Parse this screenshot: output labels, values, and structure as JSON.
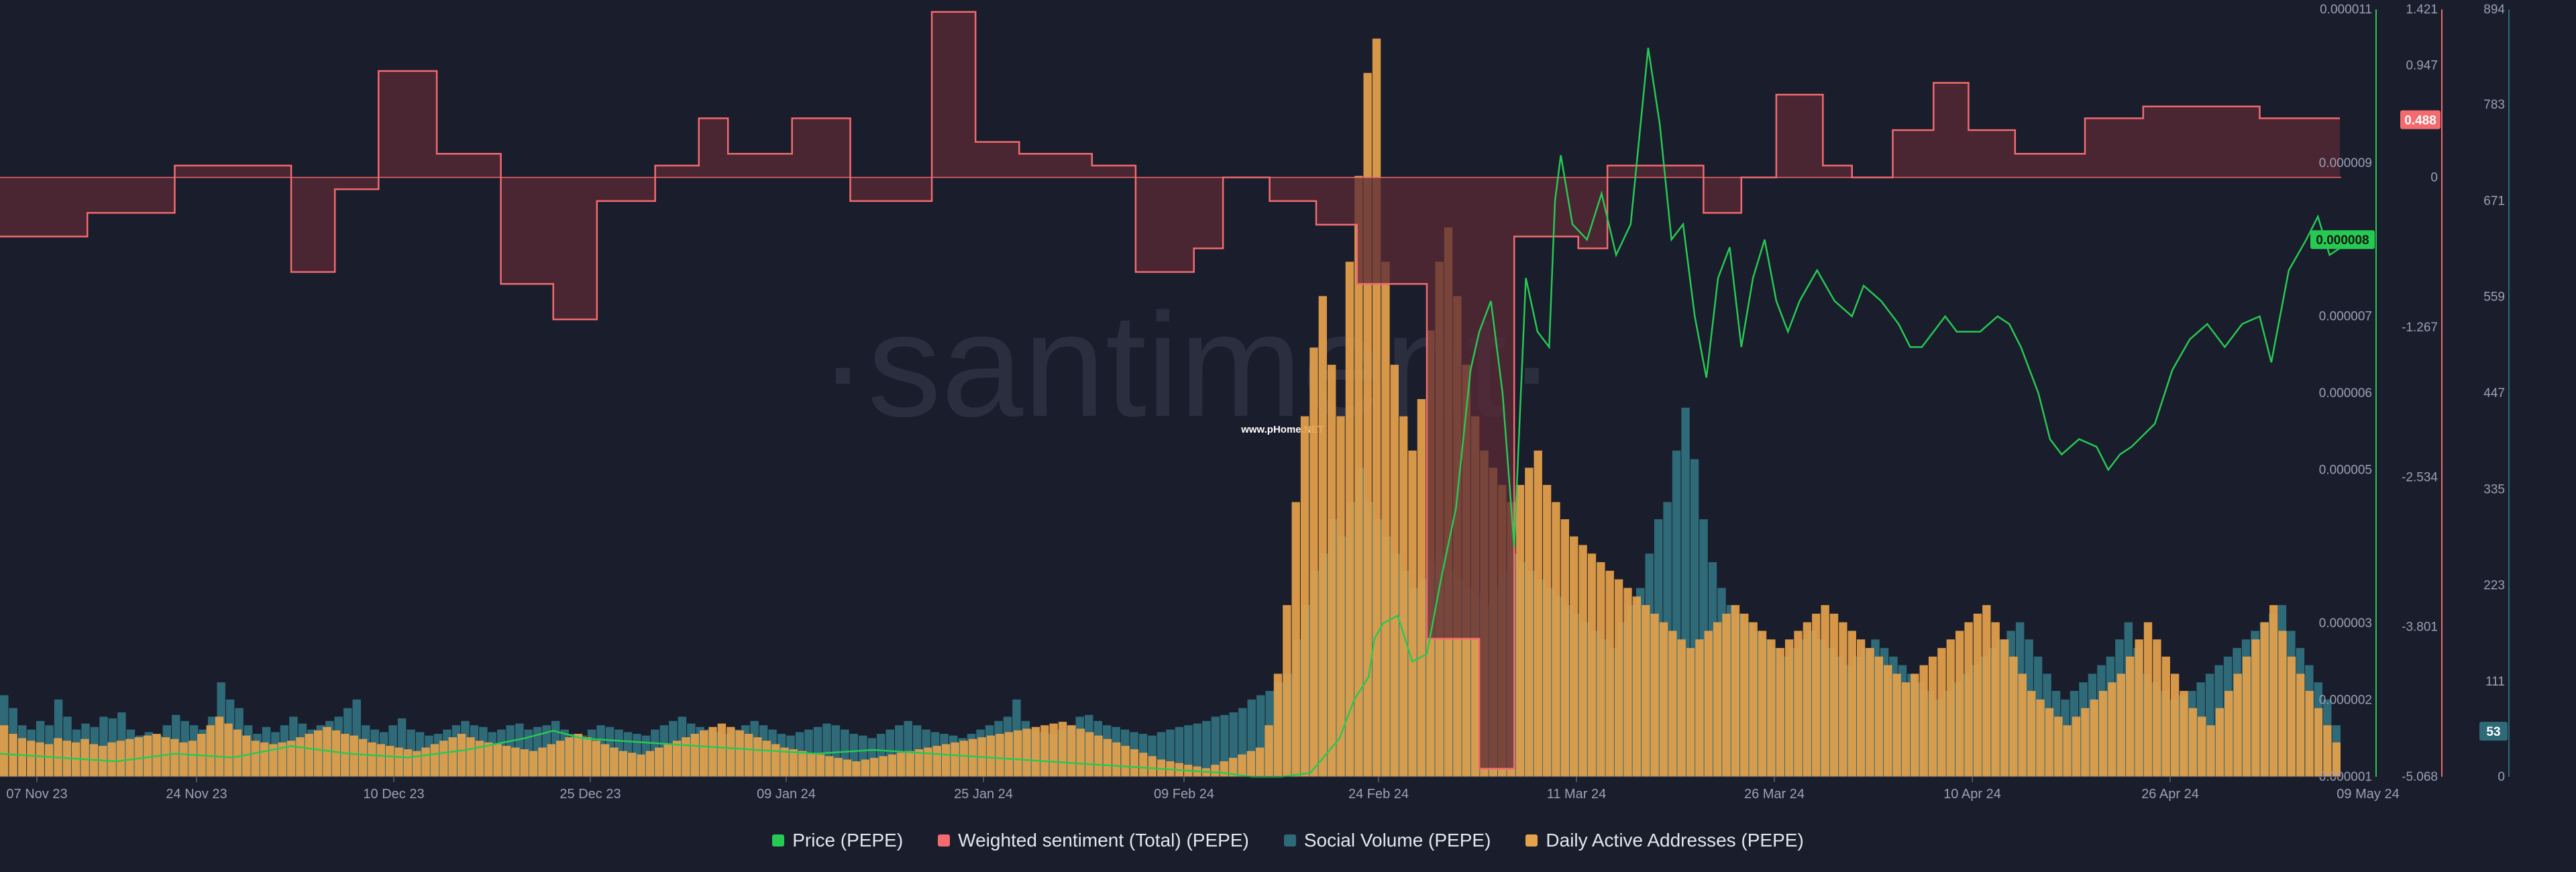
{
  "watermark": "·santiment·",
  "source_tag": "www.pHome.NET",
  "colors": {
    "background": "#1a1d2b",
    "price": "#26c953",
    "sentiment": "#f36a6f",
    "sentiment_fill": "#5a2a35",
    "social": "#2f6a78",
    "daa": "#e6a24b"
  },
  "chart_data": {
    "type": "bar",
    "x_axis": {
      "ticks": [
        "07 Nov 23",
        "24 Nov 23",
        "10 Dec 23",
        "25 Dec 23",
        "09 Jan 24",
        "25 Jan 24",
        "09 Feb 24",
        "24 Feb 24",
        "11 Mar 24",
        "26 Mar 24",
        "10 Apr 24",
        "26 Apr 24",
        "09 May 24"
      ],
      "range": [
        "2023-11-07",
        "2024-05-09"
      ]
    },
    "axes": {
      "price": {
        "ticks": [
          "0.000011",
          "0.000009",
          "0.000007",
          "0.000006",
          "0.000005",
          "0.000003",
          "0.000002",
          "0.000001"
        ],
        "range": [
          1e-06,
          1.1e-05
        ],
        "current": "0.000008"
      },
      "sentiment": {
        "ticks": [
          "1.421",
          "0.947",
          "0",
          "-1.267",
          "-2.534",
          "-3.801",
          "-5.068"
        ],
        "range": [
          -5.068,
          1.421
        ],
        "current": "0.488"
      },
      "volume": {
        "ticks": [
          "894",
          "783",
          "671",
          "559",
          "447",
          "335",
          "223",
          "111",
          "0"
        ],
        "range": [
          0,
          894
        ],
        "current": "53"
      }
    },
    "series": [
      {
        "name": "Price (PEPE)",
        "type": "line",
        "color": "#26c953",
        "axis": "price"
      },
      {
        "name": "Weighted sentiment (Total) (PEPE)",
        "type": "step-area",
        "color": "#f36a6f",
        "axis": "sentiment"
      },
      {
        "name": "Social Volume (PEPE)",
        "type": "bar",
        "color": "#2f6a78",
        "axis": "volume"
      },
      {
        "name": "Daily Active Addresses (PEPE)",
        "type": "bar",
        "color": "#e6a24b",
        "axis": "volume"
      }
    ],
    "price_path": [
      [
        0,
        1.3
      ],
      [
        20,
        1.25
      ],
      [
        40,
        1.2
      ],
      [
        60,
        1.3
      ],
      [
        80,
        1.25
      ],
      [
        100,
        1.4
      ],
      [
        120,
        1.3
      ],
      [
        140,
        1.25
      ],
      [
        160,
        1.35
      ],
      [
        180,
        1.5
      ],
      [
        190,
        1.6
      ],
      [
        200,
        1.5
      ],
      [
        220,
        1.45
      ],
      [
        240,
        1.4
      ],
      [
        260,
        1.35
      ],
      [
        280,
        1.3
      ],
      [
        300,
        1.35
      ],
      [
        320,
        1.3
      ],
      [
        340,
        1.25
      ],
      [
        360,
        1.2
      ],
      [
        380,
        1.15
      ],
      [
        400,
        1.1
      ],
      [
        420,
        1.05
      ],
      [
        430,
        1.0
      ],
      [
        440,
        1.0
      ],
      [
        450,
        1.05
      ],
      [
        460,
        1.5
      ],
      [
        465,
        2.0
      ],
      [
        470,
        2.3
      ],
      [
        472,
        2.8
      ],
      [
        475,
        3.0
      ],
      [
        480,
        3.1
      ],
      [
        485,
        2.5
      ],
      [
        490,
        2.6
      ],
      [
        495,
        3.6
      ],
      [
        500,
        4.5
      ],
      [
        505,
        6.3
      ],
      [
        508,
        6.8
      ],
      [
        512,
        7.2
      ],
      [
        516,
        6.0
      ],
      [
        520,
        4.0
      ],
      [
        524,
        7.5
      ],
      [
        528,
        6.8
      ],
      [
        532,
        6.6
      ],
      [
        534,
        8.5
      ],
      [
        536,
        9.1
      ],
      [
        540,
        8.2
      ],
      [
        545,
        8.0
      ],
      [
        550,
        8.6
      ],
      [
        555,
        7.8
      ],
      [
        560,
        8.2
      ],
      [
        566,
        10.5
      ],
      [
        570,
        9.5
      ],
      [
        574,
        8.0
      ],
      [
        578,
        8.2
      ],
      [
        582,
        7.0
      ],
      [
        586,
        6.2
      ],
      [
        590,
        7.5
      ],
      [
        594,
        7.9
      ],
      [
        598,
        6.6
      ],
      [
        602,
        7.5
      ],
      [
        606,
        8.0
      ],
      [
        610,
        7.2
      ],
      [
        614,
        6.8
      ],
      [
        618,
        7.2
      ],
      [
        624,
        7.6
      ],
      [
        630,
        7.2
      ],
      [
        636,
        7.0
      ],
      [
        640,
        7.4
      ],
      [
        646,
        7.2
      ],
      [
        652,
        6.9
      ],
      [
        656,
        6.6
      ],
      [
        660,
        6.6
      ],
      [
        664,
        6.8
      ],
      [
        668,
        7.0
      ],
      [
        672,
        6.8
      ],
      [
        680,
        6.8
      ],
      [
        686,
        7.0
      ],
      [
        690,
        6.9
      ],
      [
        694,
        6.6
      ],
      [
        700,
        6.0
      ],
      [
        704,
        5.4
      ],
      [
        708,
        5.2
      ],
      [
        714,
        5.4
      ],
      [
        720,
        5.3
      ],
      [
        724,
        5.0
      ],
      [
        728,
        5.2
      ],
      [
        732,
        5.3
      ],
      [
        740,
        5.6
      ],
      [
        746,
        6.3
      ],
      [
        752,
        6.7
      ],
      [
        758,
        6.9
      ],
      [
        764,
        6.6
      ],
      [
        770,
        6.9
      ],
      [
        776,
        7.0
      ],
      [
        780,
        6.4
      ],
      [
        786,
        7.6
      ],
      [
        792,
        8.0
      ],
      [
        796,
        8.3
      ],
      [
        800,
        7.8
      ],
      [
        804,
        7.9
      ]
    ],
    "sentiment_steps": [
      [
        0,
        -0.5
      ],
      [
        30,
        -0.3
      ],
      [
        60,
        0.1
      ],
      [
        90,
        0.1
      ],
      [
        100,
        -0.8
      ],
      [
        115,
        -0.1
      ],
      [
        130,
        0.9
      ],
      [
        150,
        0.2
      ],
      [
        172,
        -0.9
      ],
      [
        190,
        -1.2
      ],
      [
        205,
        -0.2
      ],
      [
        225,
        0.1
      ],
      [
        240,
        0.5
      ],
      [
        250,
        0.2
      ],
      [
        272,
        0.5
      ],
      [
        292,
        -0.2
      ],
      [
        320,
        1.4
      ],
      [
        335,
        0.3
      ],
      [
        350,
        0.2
      ],
      [
        375,
        0.1
      ],
      [
        390,
        -0.8
      ],
      [
        410,
        -0.6
      ],
      [
        420,
        0.0
      ],
      [
        436,
        -0.2
      ],
      [
        452,
        -0.4
      ],
      [
        466,
        -0.9
      ],
      [
        490,
        -3.9
      ],
      [
        508,
        -5.0
      ],
      [
        520,
        -0.5
      ],
      [
        532,
        -0.5
      ],
      [
        542,
        -0.6
      ],
      [
        552,
        0.1
      ],
      [
        568,
        0.1
      ],
      [
        585,
        -0.3
      ],
      [
        598,
        0.0
      ],
      [
        610,
        0.7
      ],
      [
        626,
        0.1
      ],
      [
        636,
        0.0
      ],
      [
        650,
        0.4
      ],
      [
        664,
        0.8
      ],
      [
        676,
        0.4
      ],
      [
        692,
        0.2
      ],
      [
        716,
        0.5
      ],
      [
        736,
        0.6
      ],
      [
        756,
        0.6
      ],
      [
        776,
        0.5
      ],
      [
        800,
        0.5
      ]
    ],
    "social_bars": [
      95,
      80,
      60,
      55,
      65,
      60,
      90,
      70,
      55,
      62,
      58,
      70,
      68,
      75,
      55,
      48,
      52,
      48,
      60,
      72,
      65,
      60,
      55,
      70,
      110,
      90,
      80,
      60,
      50,
      58,
      52,
      60,
      70,
      62,
      55,
      60,
      65,
      70,
      80,
      90,
      60,
      55,
      52,
      60,
      68,
      55,
      52,
      48,
      50,
      55,
      60,
      65,
      60,
      58,
      52,
      55,
      60,
      62,
      55,
      58,
      60,
      65,
      55,
      50,
      48,
      55,
      60,
      58,
      55,
      52,
      50,
      48,
      55,
      60,
      65,
      70,
      62,
      58,
      55,
      52,
      50,
      55,
      60,
      65,
      60,
      55,
      50,
      48,
      52,
      55,
      58,
      62,
      60,
      55,
      50,
      48,
      45,
      50,
      55,
      60,
      65,
      60,
      55,
      52,
      50,
      48,
      45,
      50,
      55,
      60,
      65,
      70,
      90,
      65,
      55,
      52,
      50,
      55,
      60,
      70,
      72,
      65,
      60,
      58,
      55,
      52,
      50,
      48,
      52,
      55,
      58,
      60,
      62,
      65,
      70,
      72,
      75,
      80,
      90,
      95,
      100,
      110,
      120,
      160,
      200,
      240,
      260,
      300,
      280,
      320,
      360,
      320,
      300,
      280,
      260,
      240,
      220,
      230,
      250,
      260,
      240,
      230,
      220,
      210,
      200,
      220,
      240,
      260,
      250,
      240,
      230,
      220,
      210,
      200,
      190,
      180,
      170,
      160,
      150,
      180,
      200,
      220,
      260,
      300,
      320,
      380,
      430,
      370,
      300,
      250,
      220,
      200,
      190,
      180,
      170,
      160,
      150,
      140,
      150,
      160,
      170,
      160,
      150,
      140,
      130,
      140,
      150,
      160,
      150,
      140,
      130,
      120,
      110,
      100,
      90,
      100,
      110,
      120,
      130,
      140,
      150,
      160,
      170,
      180,
      160,
      140,
      120,
      100,
      90,
      100,
      110,
      120,
      130,
      140,
      160,
      180,
      150,
      120,
      110,
      100,
      90,
      95,
      100,
      110,
      120,
      130,
      140,
      150,
      160,
      170,
      180,
      190,
      200,
      170,
      150,
      130,
      110,
      90,
      60
    ],
    "daa_bars": [
      60,
      50,
      45,
      42,
      40,
      38,
      45,
      42,
      40,
      44,
      38,
      36,
      40,
      42,
      44,
      46,
      48,
      50,
      46,
      44,
      40,
      42,
      50,
      60,
      70,
      62,
      55,
      48,
      42,
      40,
      38,
      40,
      42,
      46,
      50,
      54,
      58,
      54,
      50,
      48,
      44,
      40,
      38,
      36,
      34,
      32,
      30,
      34,
      38,
      42,
      46,
      50,
      46,
      42,
      40,
      38,
      36,
      34,
      32,
      30,
      34,
      38,
      42,
      46,
      50,
      46,
      42,
      38,
      34,
      30,
      28,
      26,
      30,
      34,
      38,
      42,
      46,
      50,
      54,
      58,
      62,
      58,
      54,
      50,
      46,
      42,
      38,
      34,
      32,
      30,
      28,
      26,
      24,
      22,
      20,
      18,
      20,
      22,
      24,
      26,
      28,
      30,
      32,
      34,
      36,
      38,
      40,
      42,
      44,
      46,
      48,
      50,
      52,
      54,
      56,
      58,
      60,
      62,
      64,
      60,
      56,
      52,
      48,
      44,
      40,
      36,
      32,
      28,
      24,
      20,
      18,
      16,
      14,
      12,
      10,
      14,
      18,
      22,
      26,
      30,
      34,
      60,
      120,
      200,
      320,
      420,
      500,
      560,
      480,
      420,
      600,
      700,
      820,
      860,
      600,
      480,
      420,
      380,
      440,
      520,
      600,
      640,
      560,
      480,
      420,
      380,
      360,
      340,
      320,
      340,
      360,
      380,
      340,
      320,
      300,
      280,
      270,
      260,
      250,
      240,
      230,
      220,
      210,
      200,
      190,
      180,
      170,
      160,
      150,
      160,
      170,
      180,
      190,
      200,
      190,
      180,
      170,
      160,
      150,
      160,
      170,
      180,
      190,
      200,
      190,
      180,
      170,
      160,
      150,
      140,
      130,
      120,
      110,
      120,
      130,
      140,
      150,
      160,
      170,
      180,
      190,
      200,
      180,
      160,
      140,
      120,
      100,
      90,
      80,
      70,
      60,
      70,
      80,
      90,
      100,
      110,
      120,
      140,
      160,
      180,
      160,
      140,
      120,
      100,
      80,
      70,
      60,
      80,
      100,
      120,
      140,
      160,
      180,
      200,
      170,
      140,
      120,
      100,
      80,
      60,
      40
    ]
  },
  "legend": [
    {
      "label": "Price (PEPE)",
      "color": "#26c953"
    },
    {
      "label": "Weighted sentiment (Total) (PEPE)",
      "color": "#f36a6f"
    },
    {
      "label": "Social Volume (PEPE)",
      "color": "#2f6a78"
    },
    {
      "label": "Daily Active Addresses (PEPE)",
      "color": "#e6a24b"
    }
  ]
}
